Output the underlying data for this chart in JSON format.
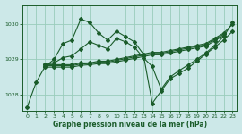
{
  "title": "Graphe pression niveau de la mer (hPa)",
  "background_color": "#cce8e8",
  "grid_color": "#99ccbb",
  "line_color": "#1a5c2a",
  "ylim": [
    1027.55,
    1030.55
  ],
  "xlim": [
    -0.5,
    23.5
  ],
  "xticks": [
    0,
    1,
    2,
    3,
    4,
    5,
    6,
    7,
    8,
    9,
    10,
    11,
    12,
    13,
    14,
    15,
    16,
    17,
    18,
    19,
    20,
    21,
    22,
    23
  ],
  "yticks": [
    1028,
    1029,
    1030
  ],
  "series": [
    {
      "x": [
        0,
        1,
        2,
        3,
        4,
        5,
        6,
        7,
        8,
        9,
        10,
        11,
        12,
        13,
        14,
        15,
        16,
        17,
        18,
        19,
        20,
        21,
        22,
        23
      ],
      "y": [
        1027.65,
        1028.35,
        1028.8,
        1029.0,
        1029.45,
        1029.55,
        1030.15,
        1030.05,
        1029.75,
        1029.55,
        1029.8,
        1029.65,
        1029.5,
        1029.15,
        1027.75,
        1028.1,
        1028.45,
        1028.6,
        1028.75,
        1028.95,
        1029.15,
        1029.35,
        1029.55,
        1029.8
      ]
    },
    {
      "x": [
        2,
        3,
        4,
        5,
        6,
        7,
        8,
        9,
        10,
        11,
        12,
        13,
        14,
        15,
        16,
        17,
        18,
        19,
        20,
        21,
        22,
        23
      ],
      "y": [
        1028.85,
        1028.85,
        1028.85,
        1028.85,
        1028.9,
        1028.9,
        1028.95,
        1028.95,
        1029.0,
        1029.05,
        1029.1,
        1029.15,
        1029.2,
        1029.2,
        1029.25,
        1029.3,
        1029.35,
        1029.4,
        1029.45,
        1029.6,
        1029.75,
        1030.0
      ]
    },
    {
      "x": [
        2,
        3,
        4,
        5,
        6,
        7,
        8,
        9,
        10,
        11,
        12,
        13,
        14,
        15,
        16,
        17,
        18,
        19,
        20,
        21,
        22
      ],
      "y": [
        1028.82,
        1028.82,
        1028.82,
        1028.82,
        1028.87,
        1028.88,
        1028.92,
        1028.92,
        1028.97,
        1029.02,
        1029.07,
        1029.12,
        1029.17,
        1029.17,
        1029.22,
        1029.27,
        1029.32,
        1029.37,
        1029.42,
        1029.57,
        1029.72
      ]
    },
    {
      "x": [
        2,
        3,
        4,
        5,
        6,
        7,
        8,
        9,
        10,
        11,
        12,
        13,
        14,
        15,
        16,
        17,
        18,
        19,
        20,
        21,
        22
      ],
      "y": [
        1028.78,
        1028.78,
        1028.78,
        1028.78,
        1028.83,
        1028.85,
        1028.88,
        1028.88,
        1028.93,
        1028.98,
        1029.03,
        1029.08,
        1029.13,
        1029.13,
        1029.18,
        1029.23,
        1029.28,
        1029.33,
        1029.38,
        1029.53,
        1029.68
      ]
    },
    {
      "x": [
        2,
        3,
        4,
        5,
        6,
        7,
        8,
        9,
        10,
        11,
        12,
        13,
        14,
        15,
        16,
        17,
        18,
        19,
        20,
        21,
        22,
        23
      ],
      "y": [
        1028.85,
        1028.9,
        1029.05,
        1029.1,
        1029.3,
        1029.5,
        1029.4,
        1029.3,
        1029.6,
        1029.5,
        1029.35,
        1029.05,
        1028.8,
        1028.15,
        1028.5,
        1028.68,
        1028.84,
        1029.0,
        1029.18,
        1029.4,
        1029.65,
        1030.05
      ]
    }
  ]
}
